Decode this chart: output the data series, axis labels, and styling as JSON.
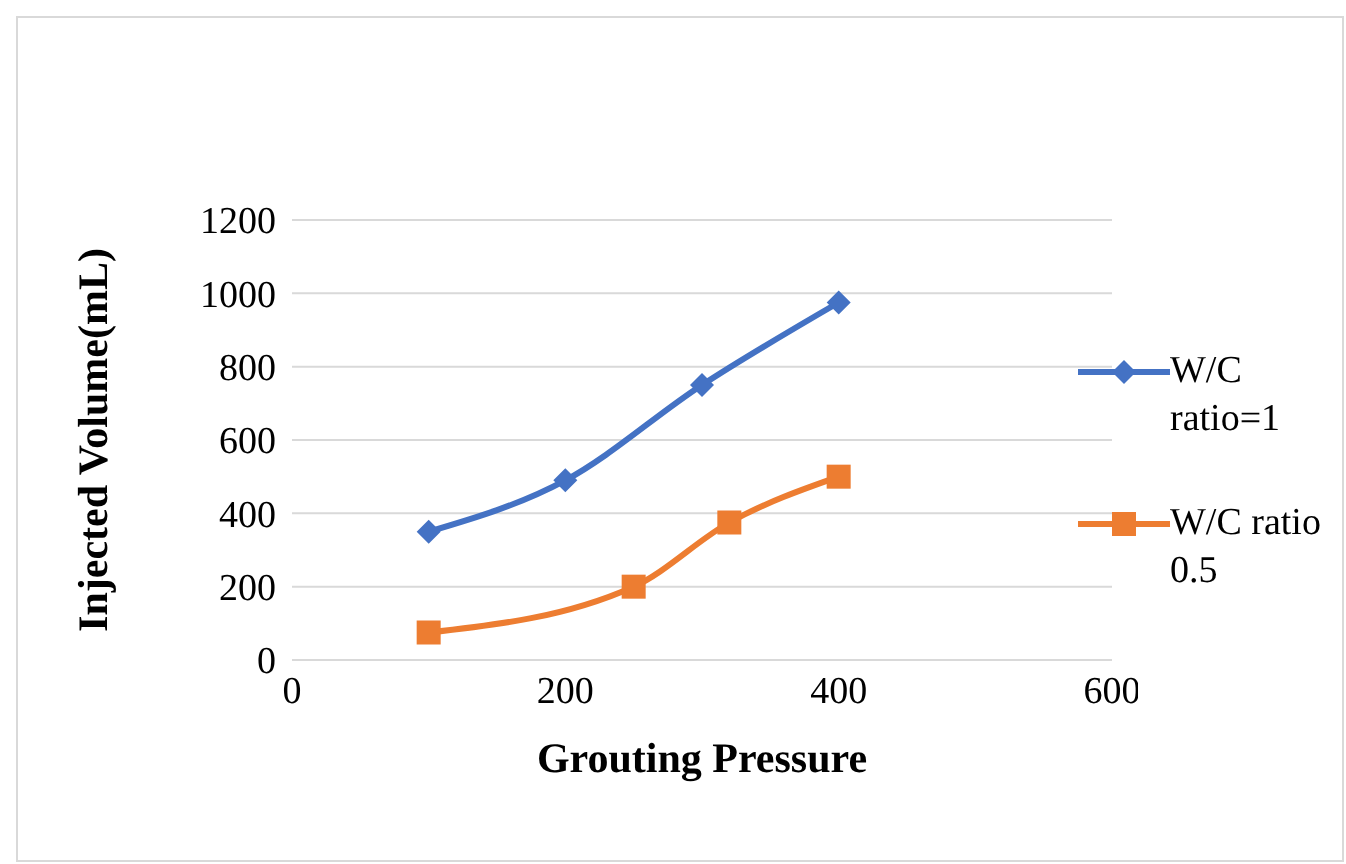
{
  "chart_data": {
    "type": "line",
    "xlabel": "Grouting Pressure",
    "ylabel": "Injected Volume(mL)",
    "xlim": [
      0,
      600
    ],
    "xticks": [
      0,
      200,
      400,
      600
    ],
    "ylim": [
      0,
      1200
    ],
    "yticks": [
      0,
      200,
      400,
      600,
      800,
      1000,
      1200
    ],
    "grid": "y",
    "legend": "right",
    "line_style": "solid",
    "series": [
      {
        "name": "W/C ratio=1",
        "color": "#4472c4",
        "marker": "diamond",
        "x": [
          100,
          200,
          300,
          400
        ],
        "values": [
          350,
          490,
          750,
          975
        ]
      },
      {
        "name": "W/C ratio 0.5",
        "color": "#ed7d31",
        "marker": "square",
        "x": [
          100,
          250,
          320,
          400
        ],
        "values": [
          75,
          200,
          375,
          500
        ]
      }
    ]
  }
}
